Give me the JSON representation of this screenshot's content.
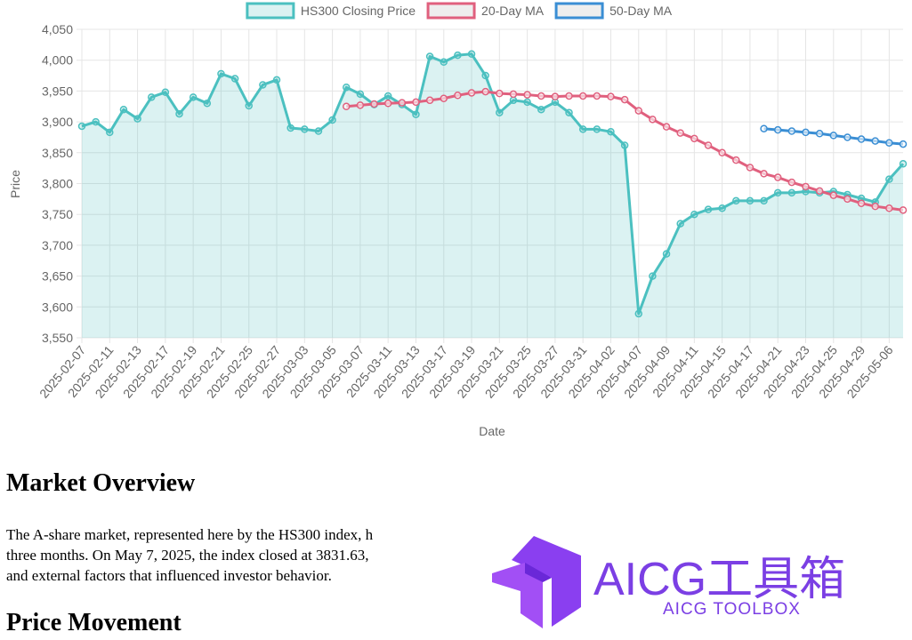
{
  "chart_data": {
    "type": "line",
    "x_label": "Date",
    "y_label": "Price",
    "categories": [
      "2025-02-07",
      null,
      "2025-02-11",
      null,
      "2025-02-13",
      null,
      "2025-02-17",
      null,
      "2025-02-19",
      null,
      "2025-02-21",
      null,
      "2025-02-25",
      null,
      "2025-02-27",
      null,
      "2025-03-03",
      null,
      "2025-03-05",
      null,
      "2025-03-07",
      null,
      "2025-03-11",
      null,
      "2025-03-13",
      null,
      "2025-03-17",
      null,
      "2025-03-19",
      null,
      "2025-03-21",
      null,
      "2025-03-25",
      null,
      "2025-03-27",
      null,
      "2025-03-31",
      null,
      "2025-04-02",
      null,
      "2025-04-07",
      null,
      "2025-04-09",
      null,
      "2025-04-11",
      null,
      "2025-04-15",
      null,
      "2025-04-17",
      null,
      "2025-04-21",
      null,
      "2025-04-23",
      null,
      "2025-04-25",
      null,
      "2025-04-29",
      null,
      "2025-05-06",
      null
    ],
    "series": [
      {
        "name": "HS300 Closing Price",
        "color": "#4bc0c0",
        "fill": "rgba(75,192,192,0.2)",
        "values": [
          3893,
          3900,
          3883,
          3920,
          3905,
          3940,
          3948,
          3913,
          3940,
          3930,
          3978,
          3970,
          3926,
          3960,
          3968,
          3890,
          3888,
          3885,
          3903,
          3956,
          3945,
          3928,
          3942,
          3928,
          3912,
          4006,
          3997,
          4008,
          4010,
          3975,
          3915,
          3935,
          3932,
          3920,
          3932,
          3915,
          3888,
          3888,
          3884,
          3862,
          3589,
          3650,
          3686,
          3735,
          3750,
          3758,
          3760,
          3772,
          3772,
          3772,
          3785,
          3785,
          3787,
          3785,
          3787,
          3782,
          3776,
          3770,
          3807,
          3832
        ]
      },
      {
        "name": "20-Day MA",
        "color": "#e0607e",
        "values": [
          null,
          null,
          null,
          null,
          null,
          null,
          null,
          null,
          null,
          null,
          null,
          null,
          null,
          null,
          null,
          null,
          null,
          null,
          null,
          3925,
          3927,
          3929,
          3930,
          3931,
          3932,
          3935,
          3938,
          3943,
          3947,
          3949,
          3946,
          3945,
          3944,
          3942,
          3941,
          3942,
          3942,
          3942,
          3941,
          3936,
          3918,
          3904,
          3892,
          3882,
          3873,
          3862,
          3850,
          3838,
          3826,
          3816,
          3810,
          3802,
          3795,
          3788,
          3781,
          3775,
          3768,
          3763,
          3760,
          3757
        ]
      },
      {
        "name": "50-Day MA",
        "color": "#3a8ed4",
        "values": [
          null,
          null,
          null,
          null,
          null,
          null,
          null,
          null,
          null,
          null,
          null,
          null,
          null,
          null,
          null,
          null,
          null,
          null,
          null,
          null,
          null,
          null,
          null,
          null,
          null,
          null,
          null,
          null,
          null,
          null,
          null,
          null,
          null,
          null,
          null,
          null,
          null,
          null,
          null,
          null,
          null,
          null,
          null,
          null,
          null,
          null,
          null,
          null,
          null,
          3889,
          3887,
          3885,
          3883,
          3881,
          3878,
          3875,
          3872,
          3869,
          3866,
          3864
        ]
      }
    ],
    "ylim": [
      3550,
      4050
    ],
    "yticks": [
      {
        "value": 3550,
        "label": "3,550"
      },
      {
        "value": 3600,
        "label": "3,600"
      },
      {
        "value": 3650,
        "label": "3,650"
      },
      {
        "value": 3700,
        "label": "3,700"
      },
      {
        "value": 3750,
        "label": "3,750"
      },
      {
        "value": 3800,
        "label": "3,800"
      },
      {
        "value": 3850,
        "label": "3,850"
      },
      {
        "value": 3900,
        "label": "3,900"
      },
      {
        "value": 3950,
        "label": "3,950"
      },
      {
        "value": 4000,
        "label": "4,000"
      },
      {
        "value": 4050,
        "label": "4,050"
      }
    ],
    "grid": true,
    "legend": "top"
  },
  "document": {
    "heading_1": "Market Overview",
    "paragraph_lines": [
      "The A-share market, represented here by the HS300 index, h",
      "three months. On May 7, 2025, the index closed at 3831.63,",
      "and external factors that influenced investor behavior."
    ],
    "heading_2": "Price Movement",
    "watermark": {
      "title": "AICG工具箱",
      "subtitle": "AICG TOOLBOX"
    }
  }
}
